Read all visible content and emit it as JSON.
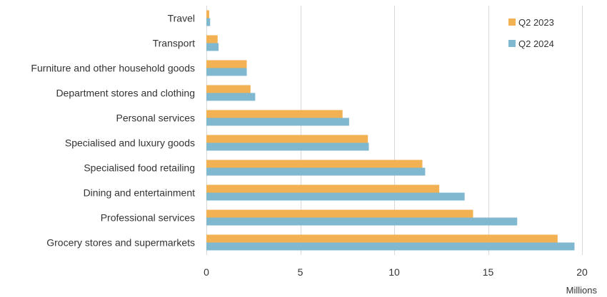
{
  "chart_data": {
    "type": "bar",
    "orientation": "horizontal",
    "categories": [
      "Travel",
      "Transport",
      "Furniture and other household goods",
      "Department stores and clothing",
      "Personal services",
      "Specialised and luxury goods",
      "Specialised food retailing",
      "Dining and entertainment",
      "Professional services",
      "Grocery stores and supermarkets"
    ],
    "series": [
      {
        "name": "Q2 2023",
        "color": "#f2b254",
        "values": [
          0.15,
          0.6,
          2.15,
          2.35,
          7.25,
          8.6,
          11.5,
          12.4,
          14.2,
          18.7
        ]
      },
      {
        "name": "Q2 2024",
        "color": "#7fb8cf",
        "values": [
          0.2,
          0.65,
          2.15,
          2.6,
          7.6,
          8.65,
          11.65,
          13.75,
          16.55,
          19.6
        ]
      }
    ],
    "title": "",
    "xlabel": "Millions",
    "ylabel": "",
    "xlim": [
      0,
      20
    ],
    "xticks": [
      0,
      5,
      10,
      15,
      20
    ],
    "grid": true,
    "legend_position": "top-right"
  }
}
